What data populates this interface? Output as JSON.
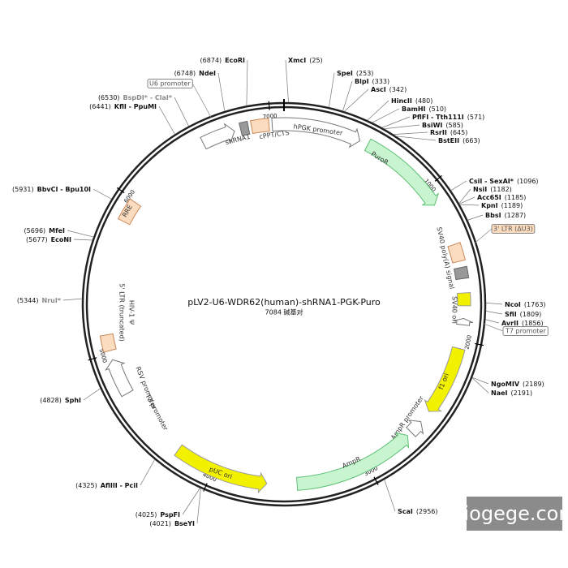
{
  "title": "pLV2-U6-WDR62(human)-shRNA1-PGK-Puro",
  "subtitle": "7084 碱基对",
  "sites": [
    {
      "name": "XmcI",
      "pos": "(25)"
    },
    {
      "name": "SpeI",
      "pos": "(253)"
    },
    {
      "name": "BlpI",
      "pos": "(333)"
    },
    {
      "name": "AscI",
      "pos": "(342)"
    },
    {
      "name": "HincII",
      "pos": "(480)"
    },
    {
      "name": "BamHI",
      "pos": "(510)"
    },
    {
      "name": "PflFI - Tth111I",
      "pos": "(571)"
    },
    {
      "name": "BsiWI",
      "pos": "(585)"
    },
    {
      "name": "RsrII",
      "pos": "(645)"
    },
    {
      "name": "BstEII",
      "pos": "(663)"
    },
    {
      "name": "CsiI - SexAI*",
      "pos": "(1096)"
    },
    {
      "name": "NsiI",
      "pos": "(1182)"
    },
    {
      "name": "Acc65I",
      "pos": "(1185)"
    },
    {
      "name": "KpnI",
      "pos": "(1189)"
    },
    {
      "name": "BbsI",
      "pos": "(1287)"
    },
    {
      "name": "NcoI",
      "pos": "(1763)"
    },
    {
      "name": "SfiI",
      "pos": "(1809)"
    },
    {
      "name": "AvrII",
      "pos": "(1856)"
    },
    {
      "name": "NgoMIV",
      "pos": "(2189)"
    },
    {
      "name": "NaeI",
      "pos": "(2191)"
    },
    {
      "name": "ScaI",
      "pos": "(2956)"
    },
    {
      "name": "BseYI",
      "pos": "(4021)"
    },
    {
      "name": "PspFI",
      "pos": "(4025)"
    },
    {
      "name": "AflIII - PciI",
      "pos": "(4325)"
    },
    {
      "name": "SphI",
      "pos": "(4828)"
    },
    {
      "name": "NruI*",
      "pos": "(5344)"
    },
    {
      "name": "EcoNI",
      "pos": "(5677)"
    },
    {
      "name": "MfeI",
      "pos": "(5696)"
    },
    {
      "name": "BbvCI - Bpu10I",
      "pos": "(5931)"
    },
    {
      "name": "KflI - PpuMI",
      "pos": "(6441)"
    },
    {
      "name": "BspDI* - ClaI*",
      "pos": "(6530)"
    },
    {
      "name": "NdeI",
      "pos": "(6748)"
    },
    {
      "name": "EcoRI",
      "pos": "(6874)"
    }
  ],
  "features": [
    {
      "label": "U6 promoter"
    },
    {
      "label": "shRNA1"
    },
    {
      "label": "cPPT/CTS"
    },
    {
      "label": "hPGK promoter"
    },
    {
      "label": "PuroR"
    },
    {
      "label": "SV40 poly(A) signal"
    },
    {
      "label": "3' LTR (ΔU3)"
    },
    {
      "label": "SV40 ori"
    },
    {
      "label": "T7 promoter"
    },
    {
      "label": "f1 ori"
    },
    {
      "label": "AmpR promoter"
    },
    {
      "label": "AmpR"
    },
    {
      "label": "pUC ori"
    },
    {
      "label": "RSV promoter"
    },
    {
      "label": "T3 promoter"
    },
    {
      "label": "5' LTR (truncated)"
    },
    {
      "label": "HIV-1 Ψ"
    },
    {
      "label": "RRE"
    }
  ],
  "ticks": [
    "1000",
    "2000",
    "3000",
    "4000",
    "5000",
    "6000",
    "7000"
  ],
  "watermark": "biogege.com"
}
